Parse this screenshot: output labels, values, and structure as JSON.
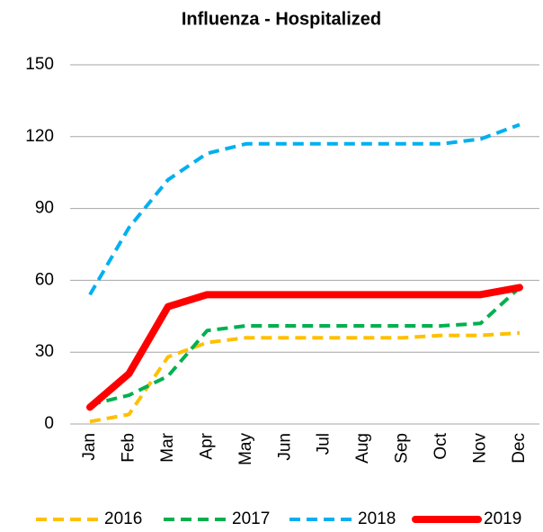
{
  "chart_data": {
    "type": "line",
    "title": "Influenza - Hospitalized",
    "categories": [
      "Jan",
      "Feb",
      "Mar",
      "Apr",
      "May",
      "Jun",
      "Jul",
      "Aug",
      "Sep",
      "Oct",
      "Nov",
      "Dec"
    ],
    "series": [
      {
        "name": "2016",
        "color": "#FFC000",
        "style": "dashed",
        "values": [
          1,
          4,
          28,
          34,
          36,
          36,
          36,
          36,
          36,
          37,
          37,
          38
        ]
      },
      {
        "name": "2017",
        "color": "#00B050",
        "style": "dashed",
        "values": [
          8,
          12,
          20,
          39,
          41,
          41,
          41,
          41,
          41,
          41,
          42,
          57
        ]
      },
      {
        "name": "2018",
        "color": "#00B0F0",
        "style": "dashed",
        "values": [
          54,
          82,
          102,
          113,
          117,
          117,
          117,
          117,
          117,
          117,
          119,
          125
        ]
      },
      {
        "name": "2019",
        "color": "#FF0000",
        "style": "solid",
        "values": [
          7,
          21,
          49,
          54,
          54,
          54,
          54,
          54,
          54,
          54,
          54,
          57
        ]
      }
    ],
    "ylim": [
      0,
      150
    ],
    "yticks": [
      0,
      30,
      60,
      90,
      120,
      150
    ],
    "grid": true,
    "legend": "bottom"
  }
}
